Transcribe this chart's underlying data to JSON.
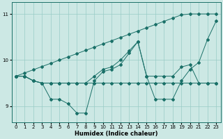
{
  "xlabel": "Humidex (Indice chaleur)",
  "background_color": "#cce8e4",
  "line_color": "#1a7068",
  "grid_color": "#99ccc6",
  "xlim": [
    -0.5,
    23.5
  ],
  "ylim": [
    8.65,
    11.25
  ],
  "yticks": [
    9,
    10,
    11
  ],
  "xticks": [
    0,
    1,
    2,
    3,
    4,
    5,
    6,
    7,
    8,
    9,
    10,
    11,
    12,
    13,
    14,
    15,
    16,
    17,
    18,
    19,
    20,
    21,
    22,
    23
  ],
  "series": [
    [
      9.65,
      9.65,
      9.55,
      9.5,
      9.5,
      9.5,
      9.5,
      9.5,
      9.5,
      9.5,
      9.5,
      9.5,
      9.5,
      9.5,
      9.5,
      9.5,
      9.5,
      9.5,
      9.5,
      9.5,
      9.5,
      9.5,
      9.5,
      9.5
    ],
    [
      9.65,
      9.65,
      9.55,
      9.5,
      9.15,
      9.15,
      9.05,
      8.85,
      8.85,
      9.55,
      9.75,
      9.8,
      9.9,
      10.15,
      10.4,
      9.65,
      9.15,
      9.15,
      9.15,
      9.55,
      9.8,
      9.95,
      10.45,
      10.85
    ],
    [
      9.65,
      9.65,
      9.55,
      9.5,
      9.5,
      9.5,
      9.5,
      9.5,
      9.5,
      9.65,
      9.8,
      9.85,
      10.0,
      10.2,
      10.4,
      9.65,
      9.65,
      9.65,
      9.65,
      9.85,
      9.9,
      9.5,
      9.5,
      9.5
    ],
    [
      9.65,
      9.72,
      9.79,
      9.86,
      9.93,
      10.0,
      10.07,
      10.14,
      10.21,
      10.28,
      10.35,
      10.42,
      10.49,
      10.56,
      10.63,
      10.7,
      10.77,
      10.84,
      10.91,
      10.98,
      11.0,
      11.0,
      11.0,
      11.0
    ]
  ],
  "x": [
    0,
    1,
    2,
    3,
    4,
    5,
    6,
    7,
    8,
    9,
    10,
    11,
    12,
    13,
    14,
    15,
    16,
    17,
    18,
    19,
    20,
    21,
    22,
    23
  ]
}
